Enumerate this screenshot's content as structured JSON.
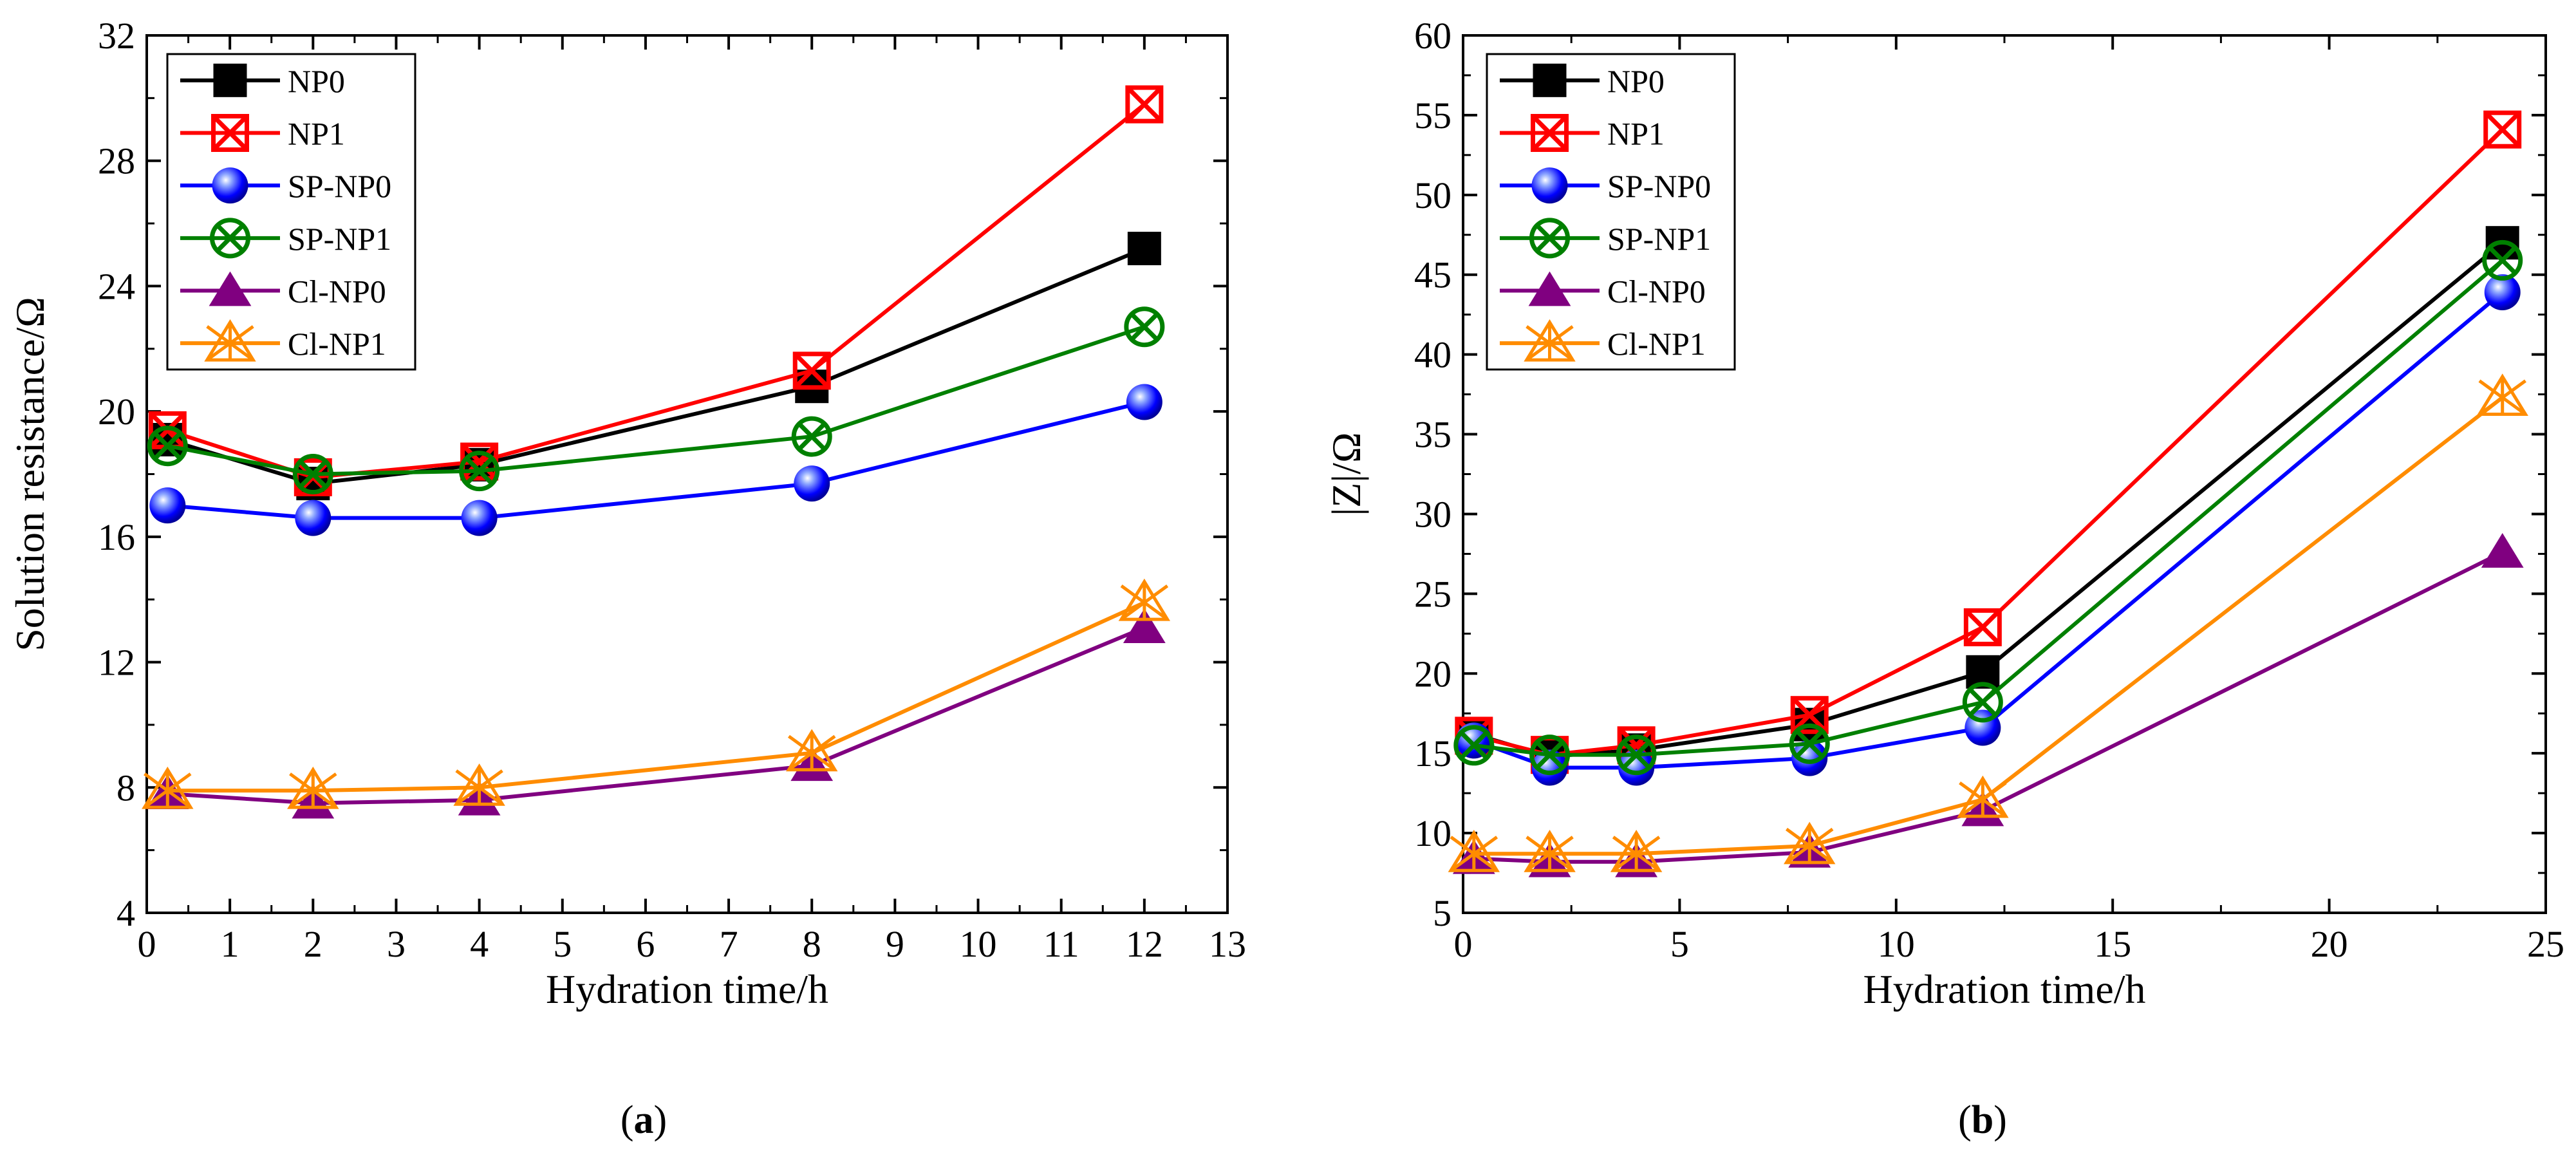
{
  "figure": {
    "panels": [
      "a",
      "b"
    ]
  },
  "chart_data": [
    {
      "type": "line",
      "panel_label": "a",
      "title": "",
      "xlabel": "Hydration time/h",
      "ylabel": "Solution resistance/Ω",
      "xlim": [
        0,
        13
      ],
      "ylim": [
        4,
        32
      ],
      "xticks": [
        0,
        1,
        2,
        3,
        4,
        5,
        6,
        7,
        8,
        9,
        10,
        11,
        12,
        13
      ],
      "yticks": [
        4,
        8,
        12,
        16,
        20,
        24,
        28,
        32
      ],
      "grid": false,
      "legend_position": "top-left",
      "x": [
        0.25,
        2,
        4,
        8,
        12
      ],
      "series": [
        {
          "name": "NP0",
          "color": "#000000",
          "marker": "square",
          "values": [
            19.1,
            17.7,
            18.3,
            20.8,
            25.2
          ]
        },
        {
          "name": "NP1",
          "color": "#ff0000",
          "marker": "square-x",
          "values": [
            19.4,
            17.9,
            18.4,
            21.3,
            29.8
          ]
        },
        {
          "name": "SP-NP0",
          "color": "#0000ff",
          "marker": "sphere",
          "values": [
            17.0,
            16.6,
            16.6,
            17.7,
            20.3
          ]
        },
        {
          "name": "SP-NP1",
          "color": "#008000",
          "marker": "circle-x",
          "values": [
            18.9,
            18.0,
            18.1,
            19.2,
            22.7
          ]
        },
        {
          "name": "Cl-NP0",
          "color": "#800080",
          "marker": "triangle",
          "values": [
            7.8,
            7.5,
            7.6,
            8.7,
            13.1
          ]
        },
        {
          "name": "Cl-NP1",
          "color": "#ff8c00",
          "marker": "asterisk-triangle",
          "values": [
            7.9,
            7.9,
            8.0,
            9.1,
            13.9
          ]
        }
      ]
    },
    {
      "type": "line",
      "panel_label": "b",
      "title": "",
      "xlabel": "Hydration time/h",
      "ylabel": "|Z|/Ω",
      "xlim": [
        0,
        25
      ],
      "ylim": [
        5,
        60
      ],
      "xticks": [
        0,
        5,
        10,
        15,
        20,
        25
      ],
      "yticks": [
        5,
        10,
        15,
        20,
        25,
        30,
        35,
        40,
        45,
        50,
        55,
        60
      ],
      "grid": false,
      "legend_position": "top-left",
      "x": [
        0.25,
        2,
        4,
        8,
        12,
        24
      ],
      "series": [
        {
          "name": "NP0",
          "color": "#000000",
          "marker": "square",
          "values": [
            16.2,
            14.8,
            15.2,
            16.8,
            20.1,
            47.0
          ]
        },
        {
          "name": "NP1",
          "color": "#ff0000",
          "marker": "square-x",
          "values": [
            16.1,
            14.9,
            15.5,
            17.4,
            22.9,
            54.1
          ]
        },
        {
          "name": "SP-NP0",
          "color": "#0000ff",
          "marker": "sphere",
          "values": [
            15.8,
            14.1,
            14.1,
            14.7,
            16.6,
            43.9
          ]
        },
        {
          "name": "SP-NP1",
          "color": "#008000",
          "marker": "circle-x",
          "values": [
            15.5,
            14.9,
            14.9,
            15.6,
            18.2,
            45.9
          ]
        },
        {
          "name": "Cl-NP0",
          "color": "#800080",
          "marker": "triangle",
          "values": [
            8.4,
            8.2,
            8.2,
            8.8,
            11.4,
            27.6
          ]
        },
        {
          "name": "Cl-NP1",
          "color": "#ff8c00",
          "marker": "asterisk-triangle",
          "values": [
            8.7,
            8.7,
            8.7,
            9.2,
            12.1,
            37.3
          ]
        }
      ]
    }
  ]
}
